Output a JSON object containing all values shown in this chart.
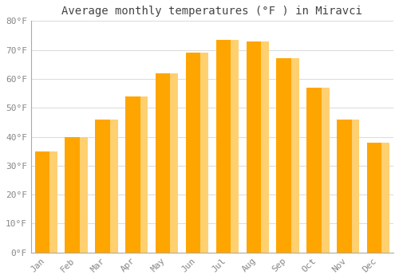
{
  "title": "Average monthly temperatures (°F ) in Miravci",
  "months": [
    "Jan",
    "Feb",
    "Mar",
    "Apr",
    "May",
    "Jun",
    "Jul",
    "Aug",
    "Sep",
    "Oct",
    "Nov",
    "Dec"
  ],
  "values": [
    35,
    40,
    46,
    54,
    62,
    69,
    73.5,
    73,
    67,
    57,
    46,
    38
  ],
  "bar_color_main": "#FFA500",
  "bar_color_light": "#FFD070",
  "background_color": "#ffffff",
  "ylim": [
    0,
    80
  ],
  "yticks": [
    0,
    10,
    20,
    30,
    40,
    50,
    60,
    70,
    80
  ],
  "ytick_labels": [
    "0°F",
    "10°F",
    "20°F",
    "30°F",
    "40°F",
    "50°F",
    "60°F",
    "70°F",
    "80°F"
  ],
  "title_fontsize": 10,
  "tick_fontsize": 8,
  "grid_color": "#dddddd",
  "bar_width": 0.75
}
